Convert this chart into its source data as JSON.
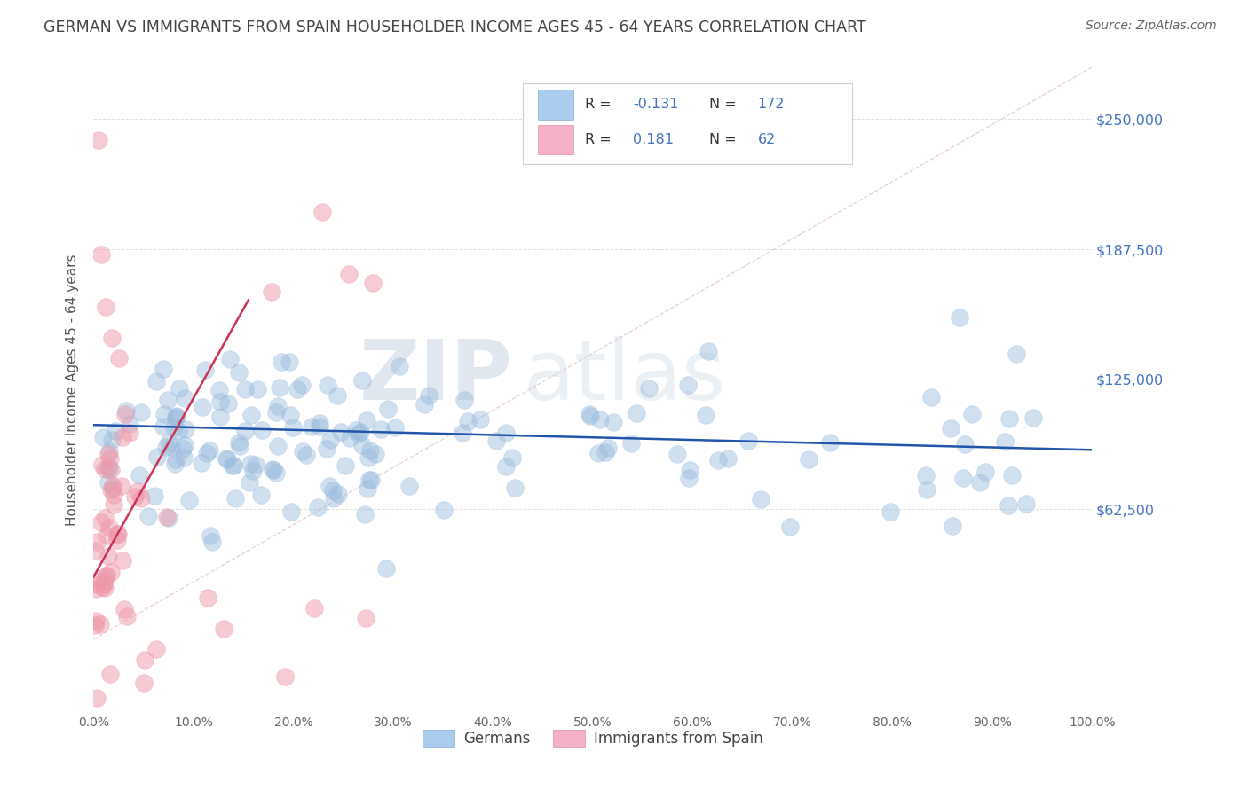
{
  "title": "GERMAN VS IMMIGRANTS FROM SPAIN HOUSEHOLDER INCOME AGES 45 - 64 YEARS CORRELATION CHART",
  "source": "Source: ZipAtlas.com",
  "ylabel": "Householder Income Ages 45 - 64 years",
  "watermark_zip": "ZIP",
  "watermark_atlas": "atlas",
  "legend_label_blue": "Germans",
  "legend_label_pink": "Immigrants from Spain",
  "blue_line_color": "#2255aa",
  "pink_line_color": "#cc3355",
  "blue_scatter_color": "#99bbdd",
  "pink_scatter_color": "#ee99aa",
  "diag_line_color": "#ddbbbb",
  "title_color": "#444444",
  "ytick_color": "#4472c4",
  "xtick_color": "#666666",
  "legend_R_color": "#4472c4",
  "legend_label_color": "#333333",
  "ymax": 275000,
  "ymin": -35000,
  "xmin": 0.0,
  "xmax": 1.0,
  "yticks": [
    0,
    62500,
    125000,
    187500,
    250000
  ],
  "ytick_labels": [
    "",
    "$62,500",
    "$125,000",
    "$187,500",
    "$250,000"
  ],
  "xtick_vals": [
    0.0,
    0.1,
    0.2,
    0.3,
    0.4,
    0.5,
    0.6,
    0.7,
    0.8,
    0.9,
    1.0
  ],
  "xtick_labels": [
    "0.0%",
    "10.0%",
    "20.0%",
    "30.0%",
    "40.0%",
    "50.0%",
    "60.0%",
    "70.0%",
    "80.0%",
    "90.0%",
    "100.0%"
  ],
  "blue_trend_x": [
    0.0,
    1.0
  ],
  "blue_trend_y": [
    103000,
    91000
  ],
  "pink_trend_x": [
    0.0,
    0.155
  ],
  "pink_trend_y": [
    30000,
    163000
  ],
  "figsize": [
    14.06,
    8.92
  ],
  "dpi": 100,
  "background_color": "#ffffff",
  "grid_color": "#cccccc",
  "legend_box_color": "#f5f5f5",
  "legend_box_edge": "#cccccc"
}
